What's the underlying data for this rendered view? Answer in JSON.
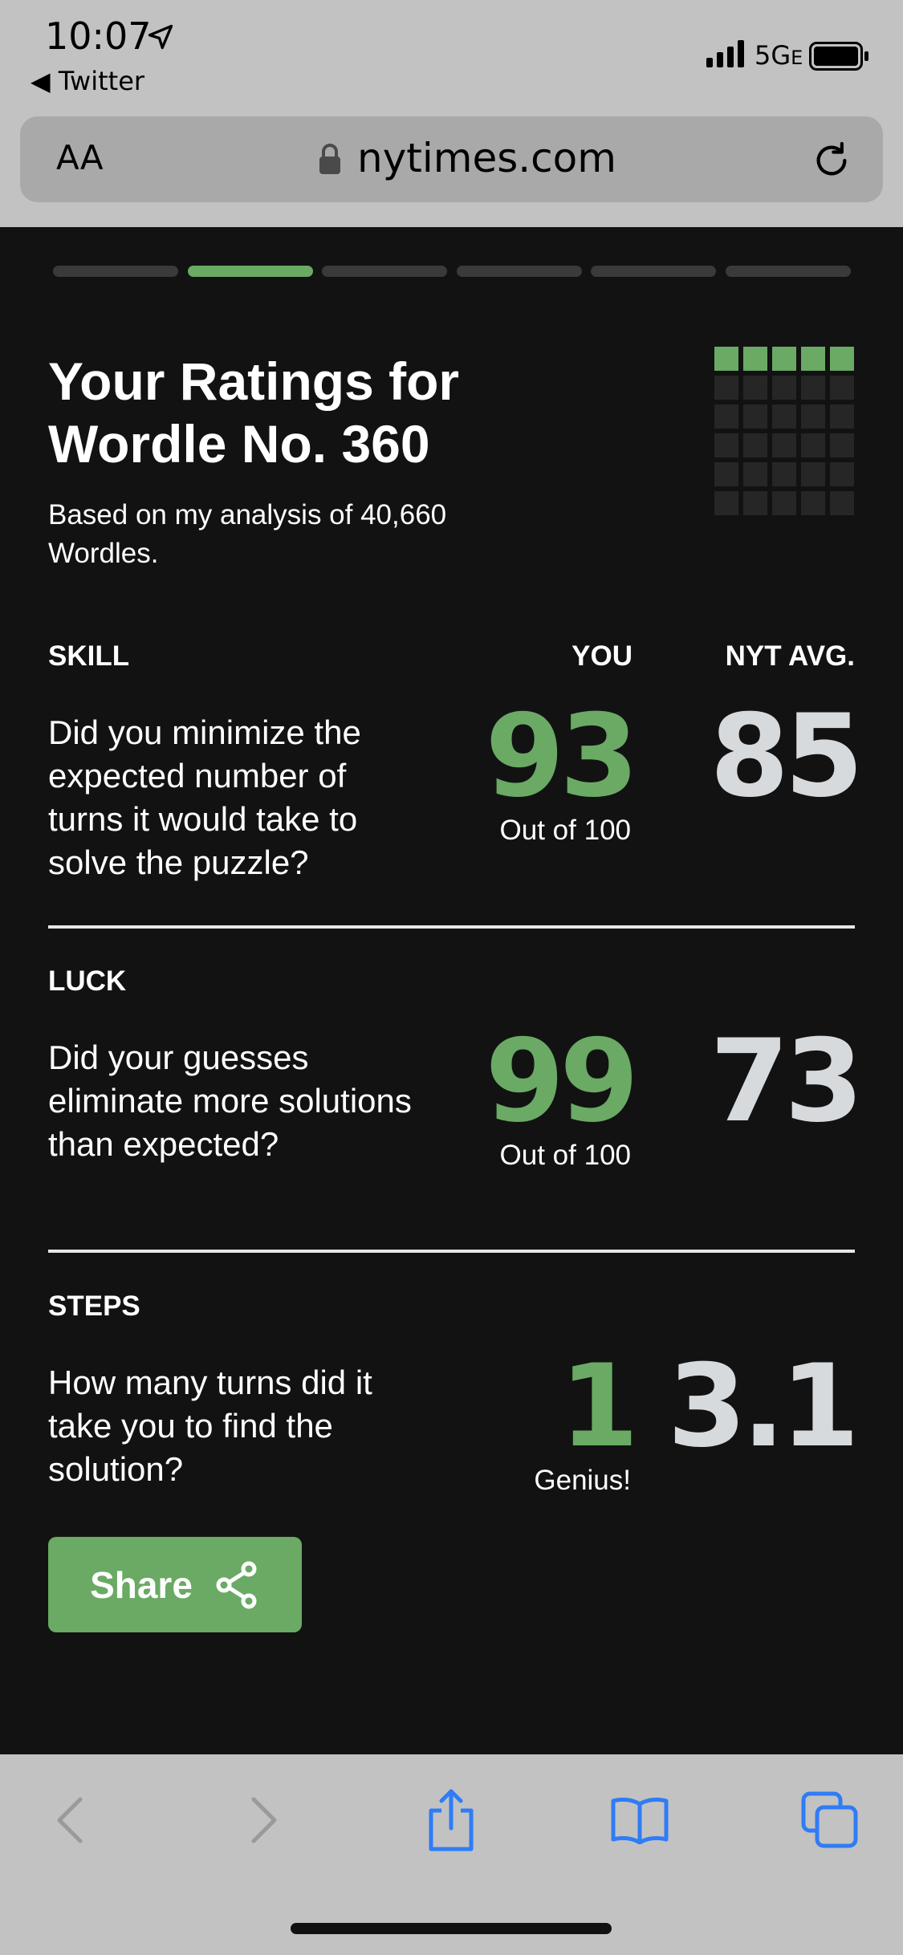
{
  "status_bar": {
    "time": "10:07",
    "back_app": "Twitter",
    "network": "5G",
    "network_suffix": "E"
  },
  "browser": {
    "text_size_label": "AA",
    "url": "nytimes.com"
  },
  "progress": {
    "total_segments": 6,
    "active_index": 1
  },
  "header": {
    "title": "Your Ratings for Wordle No. 360",
    "subtitle": "Based on my analysis of 40,660 Wordles."
  },
  "mini_grid": {
    "rows": 6,
    "cols": 5,
    "green_rows": 1
  },
  "columns": {
    "you": "YOU",
    "avg": "NYT AVG."
  },
  "sections": [
    {
      "label": "SKILL",
      "question": "Did you minimize the expected number of turns it would take to solve the puzzle?",
      "you": "93",
      "you_caption": "Out of 100",
      "avg": "85"
    },
    {
      "label": "LUCK",
      "question": "Did your guesses eliminate more solutions than expected?",
      "you": "99",
      "you_caption": "Out of 100",
      "avg": "73"
    },
    {
      "label": "STEPS",
      "question": "How many turns did it take you to find the solution?",
      "you": "1",
      "you_caption": "Genius!",
      "avg": "3.1"
    }
  ],
  "share": {
    "label": "Share",
    "icon": "share-icon"
  },
  "toolbar": {
    "icons": [
      "back-icon",
      "forward-icon",
      "share-icon",
      "bookmarks-icon",
      "tabs-icon"
    ]
  },
  "colors": {
    "green": "#6aaa64",
    "background": "#121213",
    "chrome": "#c2c2c2",
    "ios_blue": "#2f7cf6",
    "disabled": "#9a9a9a"
  }
}
